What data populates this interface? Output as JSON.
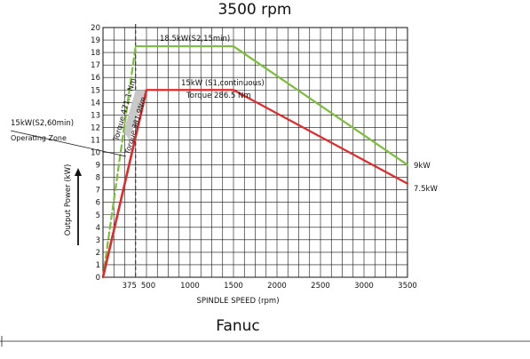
{
  "chart_data": {
    "type": "line",
    "title": "3500 rpm",
    "xlabel": "SPINDLE SPEED (rpm)",
    "ylabel": "Output Power (kW)",
    "brand": "Fanuc",
    "xlim": [
      0,
      3500
    ],
    "ylim": [
      0,
      20
    ],
    "x_ticks": [
      375,
      500,
      1000,
      1500,
      2000,
      2500,
      3000,
      3500
    ],
    "x_tick_labels": [
      "375",
      "500",
      "1000",
      "1500",
      "2000",
      "2500",
      "3000",
      "3500"
    ],
    "y_ticks": [
      0,
      1,
      2,
      3,
      4,
      5,
      6,
      7,
      8,
      9,
      10,
      11,
      12,
      13,
      14,
      15,
      16,
      17,
      18,
      19,
      20
    ],
    "x_grid": [
      0,
      125,
      250,
      375,
      500,
      625,
      750,
      875,
      1000,
      1125,
      1250,
      1375,
      1500,
      1625,
      1750,
      1875,
      2000,
      2125,
      2250,
      2375,
      2500,
      2625,
      2750,
      2875,
      3000,
      3125,
      3250,
      3375,
      3500
    ],
    "grid": true,
    "series": [
      {
        "key": "s2_15min",
        "color": "#7cbd3b",
        "dashed_segments": [
          0
        ],
        "points": [
          [
            0,
            0
          ],
          [
            375,
            18.5
          ],
          [
            1500,
            18.5
          ],
          [
            3500,
            9
          ]
        ],
        "label": "18.5kW(S2,15min)",
        "end_label": "9kW"
      },
      {
        "key": "s1_cont",
        "color": "#e02a2a",
        "dashed_segments": [
          0
        ],
        "points": [
          [
            0,
            0
          ],
          [
            500,
            15
          ],
          [
            1500,
            15
          ],
          [
            3500,
            7.5
          ]
        ],
        "label": "15kW  (S1,continuous)",
        "end_label": "7.5kW"
      }
    ],
    "zone": {
      "color": "#c8c8c8",
      "points": [
        [
          238,
          11.7
        ],
        [
          375,
          15
        ],
        [
          500,
          15
        ],
        [
          300,
          11
        ]
      ]
    },
    "vertical_markers": [
      {
        "x": 375,
        "style": "dashed"
      }
    ],
    "annotations": {
      "torque_s1": "Torque 286.5 Nm",
      "torque_471": "Torque 471.1 Nm",
      "torque_381": "Torque 381.9Nm",
      "zone_power": "15kW(S2,60min)",
      "zone_name": "Operating Zone"
    }
  }
}
